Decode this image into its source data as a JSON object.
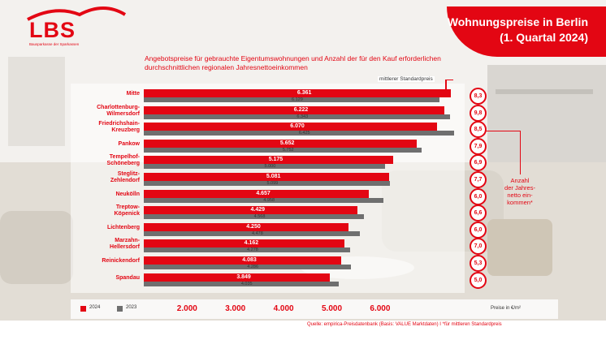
{
  "logo": {
    "wordmark": "LBS",
    "subline": "Bausparkasse der Sparkassen"
  },
  "title": {
    "line1": "Wohnungspreise in Berlin",
    "line2": "(1. Quartal 2024)"
  },
  "subtitle": "Angebotspreise für gebrauchte Eigentumswohnungen und Anzahl der für den Kauf erforderlichen durchschnittlichen regionalen Jahresnettoeinkommen",
  "annotation_standard": "mittlerer Standardpreis",
  "annotation_income": {
    "line1": "Anzahl",
    "line2": "der Jahres-",
    "line3": "netto ein-",
    "line4": "kommen*"
  },
  "unit_label": "Preise in €/m²",
  "source": "Quelle: empirica-Preisdatenbank (Basis: VALUE Marktdaten)   I   *für mittleren Standardpreis",
  "legend": {
    "y2024": "2024",
    "y2023": "2023"
  },
  "colors": {
    "accent": "#e30613",
    "grey": "#6f6f6f"
  },
  "chart_data": {
    "type": "bar",
    "orientation": "horizontal",
    "title": "Wohnungspreise in Berlin (1. Quartal 2024)",
    "xlabel": "Preise in €/m²",
    "xlim": [
      0,
      6700
    ],
    "xticks": [
      "2.000",
      "3.000",
      "4.000",
      "5.000",
      "6.000"
    ],
    "xtick_values": [
      2000,
      3000,
      4000,
      5000,
      6000
    ],
    "categories": [
      "Mitte",
      "Charlottenburg-Wilmersdorf",
      "Friedrichshain-Kreuzberg",
      "Pankow",
      "Tempelhof-Schöneberg",
      "Steglitz-Zehlendorf",
      "Neukölln",
      "Treptow-Köpenick",
      "Lichtenberg",
      "Marzahn-Hellersdorf",
      "Reinickendorf",
      "Spandau"
    ],
    "category_lines": [
      [
        "Mitte"
      ],
      [
        "Charlottenburg-",
        "Wilmersdorf"
      ],
      [
        "Friedrichshain-",
        "Kreuzberg"
      ],
      [
        "Pankow"
      ],
      [
        "Tempelhof-",
        "Schöneberg"
      ],
      [
        "Steglitz-",
        "Zehlendorf"
      ],
      [
        "Neukölln"
      ],
      [
        "Treptow-",
        "Köpenick"
      ],
      [
        "Lichtenberg"
      ],
      [
        "Marzahn-",
        "Hellersdorf"
      ],
      [
        "Reinickendorf"
      ],
      [
        "Spandau"
      ]
    ],
    "series": [
      {
        "name": "2024",
        "values": [
          6361,
          6222,
          6070,
          5652,
          5175,
          5081,
          4657,
          4429,
          4250,
          4162,
          4083,
          3849
        ],
        "labels": [
          "6.361",
          "6.222",
          "6.070",
          "5.652",
          "5.175",
          "5.081",
          "4.657",
          "4.429",
          "4.250",
          "4.162",
          "4.083",
          "3.849"
        ]
      },
      {
        "name": "2023",
        "values": [
          6129,
          6343,
          6425,
          5752,
          5000,
          5099,
          4958,
          4568,
          4478,
          4278,
          4286,
          4035
        ],
        "labels": [
          "6.129",
          "6.343",
          "6.425",
          "5.752",
          "5.000",
          "5.099",
          "4.958",
          "4.568",
          "4.478",
          "4.278",
          "4.286",
          "4.035"
        ]
      }
    ],
    "income_ratio": [
      "8,3",
      "9,8",
      "8,5",
      "7,9",
      "6,9",
      "7,7",
      "6,0",
      "6,6",
      "6,0",
      "7,0",
      "5,3",
      "5,0"
    ],
    "legend_position": "bottom-left"
  }
}
